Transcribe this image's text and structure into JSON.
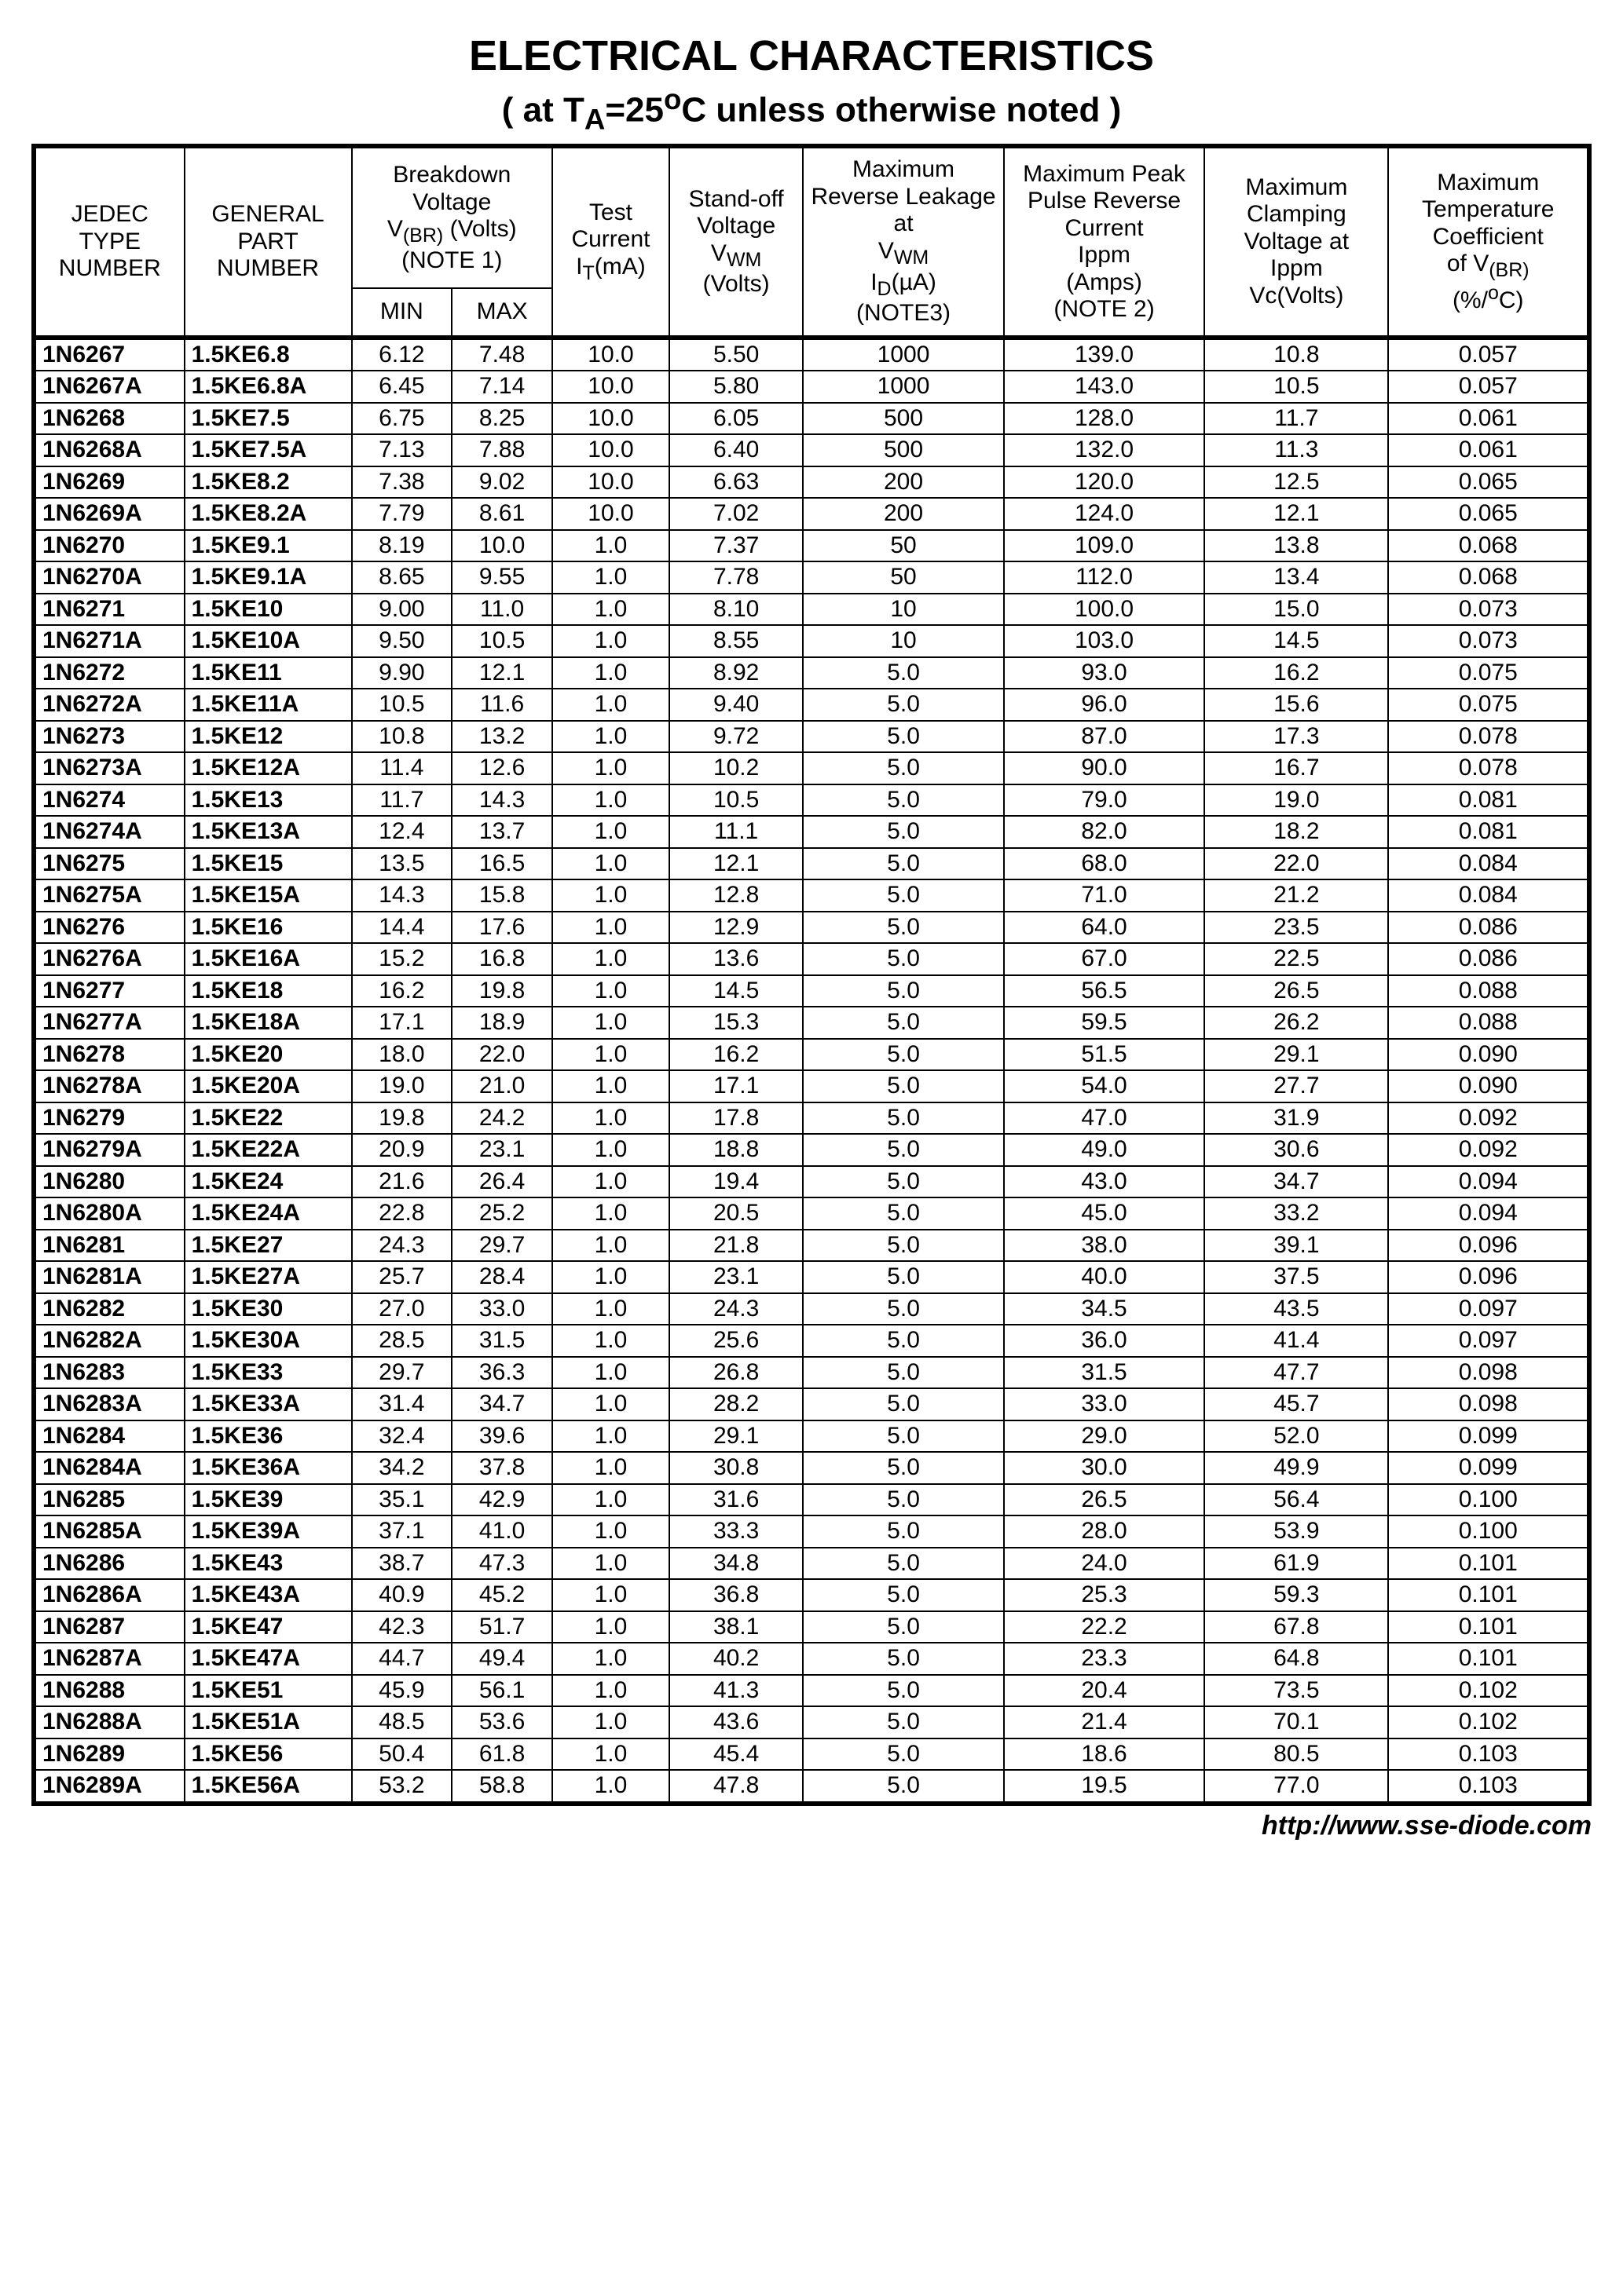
{
  "title": "ELECTRICAL CHARACTERISTICS",
  "subtitle_prefix": "( at T",
  "subtitle_sub": "A",
  "subtitle_mid": "=25",
  "subtitle_sup": "o",
  "subtitle_suffix": "C unless otherwise noted )",
  "footer_url": "http://www.sse-diode.com",
  "headers": {
    "jedec": "JEDEC TYPE NUMBER",
    "part": "GENERAL PART NUMBER",
    "breakdown_label": "Breakdown Voltage",
    "breakdown_v": "V",
    "breakdown_sub": "(BR)",
    "breakdown_units": " (Volts)",
    "breakdown_note": "(NOTE 1)",
    "min": "MIN",
    "max": "MAX",
    "test_label": "Test Current",
    "test_sym": "I",
    "test_sub": "T",
    "test_units": "(mA)",
    "standoff_label": "Stand-off Voltage",
    "standoff_sym": "V",
    "standoff_sub": "WM",
    "standoff_units": "(Volts)",
    "leakage_label": "Maximum Reverse Leakage at",
    "leakage_at_sym": "V",
    "leakage_at_sub": "WM",
    "leakage_sym": "I",
    "leakage_sub": "D",
    "leakage_units": "(µA)",
    "leakage_note": "(NOTE3)",
    "peak_label": "Maximum Peak Pulse Reverse Current",
    "peak_sym": "Ippm",
    "peak_units": "(Amps)",
    "peak_note": "(NOTE 2)",
    "clamp_label": "Maximum Clamping Voltage at",
    "clamp_at": "Ippm",
    "clamp_sym": "Vc(Volts)",
    "temp_label": "Maximum Temperature Coefficient",
    "temp_of": "of V",
    "temp_sub": "(BR)",
    "temp_units": "(%/",
    "temp_sup": "o",
    "temp_units2": "C)"
  },
  "rows": [
    [
      "1N6267",
      "1.5KE6.8",
      "6.12",
      "7.48",
      "10.0",
      "5.50",
      "1000",
      "139.0",
      "10.8",
      "0.057"
    ],
    [
      "1N6267A",
      "1.5KE6.8A",
      "6.45",
      "7.14",
      "10.0",
      "5.80",
      "1000",
      "143.0",
      "10.5",
      "0.057"
    ],
    [
      "1N6268",
      "1.5KE7.5",
      "6.75",
      "8.25",
      "10.0",
      "6.05",
      "500",
      "128.0",
      "11.7",
      "0.061"
    ],
    [
      "1N6268A",
      "1.5KE7.5A",
      "7.13",
      "7.88",
      "10.0",
      "6.40",
      "500",
      "132.0",
      "11.3",
      "0.061"
    ],
    [
      "1N6269",
      "1.5KE8.2",
      "7.38",
      "9.02",
      "10.0",
      "6.63",
      "200",
      "120.0",
      "12.5",
      "0.065"
    ],
    [
      "1N6269A",
      "1.5KE8.2A",
      "7.79",
      "8.61",
      "10.0",
      "7.02",
      "200",
      "124.0",
      "12.1",
      "0.065"
    ],
    [
      "1N6270",
      "1.5KE9.1",
      "8.19",
      "10.0",
      "1.0",
      "7.37",
      "50",
      "109.0",
      "13.8",
      "0.068"
    ],
    [
      "1N6270A",
      "1.5KE9.1A",
      "8.65",
      "9.55",
      "1.0",
      "7.78",
      "50",
      "112.0",
      "13.4",
      "0.068"
    ],
    [
      "1N6271",
      "1.5KE10",
      "9.00",
      "11.0",
      "1.0",
      "8.10",
      "10",
      "100.0",
      "15.0",
      "0.073"
    ],
    [
      "1N6271A",
      "1.5KE10A",
      "9.50",
      "10.5",
      "1.0",
      "8.55",
      "10",
      "103.0",
      "14.5",
      "0.073"
    ],
    [
      "1N6272",
      "1.5KE11",
      "9.90",
      "12.1",
      "1.0",
      "8.92",
      "5.0",
      "93.0",
      "16.2",
      "0.075"
    ],
    [
      "1N6272A",
      "1.5KE11A",
      "10.5",
      "11.6",
      "1.0",
      "9.40",
      "5.0",
      "96.0",
      "15.6",
      "0.075"
    ],
    [
      "1N6273",
      "1.5KE12",
      "10.8",
      "13.2",
      "1.0",
      "9.72",
      "5.0",
      "87.0",
      "17.3",
      "0.078"
    ],
    [
      "1N6273A",
      "1.5KE12A",
      "11.4",
      "12.6",
      "1.0",
      "10.2",
      "5.0",
      "90.0",
      "16.7",
      "0.078"
    ],
    [
      "1N6274",
      "1.5KE13",
      "11.7",
      "14.3",
      "1.0",
      "10.5",
      "5.0",
      "79.0",
      "19.0",
      "0.081"
    ],
    [
      "1N6274A",
      "1.5KE13A",
      "12.4",
      "13.7",
      "1.0",
      "11.1",
      "5.0",
      "82.0",
      "18.2",
      "0.081"
    ],
    [
      "1N6275",
      "1.5KE15",
      "13.5",
      "16.5",
      "1.0",
      "12.1",
      "5.0",
      "68.0",
      "22.0",
      "0.084"
    ],
    [
      "1N6275A",
      "1.5KE15A",
      "14.3",
      "15.8",
      "1.0",
      "12.8",
      "5.0",
      "71.0",
      "21.2",
      "0.084"
    ],
    [
      "1N6276",
      "1.5KE16",
      "14.4",
      "17.6",
      "1.0",
      "12.9",
      "5.0",
      "64.0",
      "23.5",
      "0.086"
    ],
    [
      "1N6276A",
      "1.5KE16A",
      "15.2",
      "16.8",
      "1.0",
      "13.6",
      "5.0",
      "67.0",
      "22.5",
      "0.086"
    ],
    [
      "1N6277",
      "1.5KE18",
      "16.2",
      "19.8",
      "1.0",
      "14.5",
      "5.0",
      "56.5",
      "26.5",
      "0.088"
    ],
    [
      "1N6277A",
      "1.5KE18A",
      "17.1",
      "18.9",
      "1.0",
      "15.3",
      "5.0",
      "59.5",
      "26.2",
      "0.088"
    ],
    [
      "1N6278",
      "1.5KE20",
      "18.0",
      "22.0",
      "1.0",
      "16.2",
      "5.0",
      "51.5",
      "29.1",
      "0.090"
    ],
    [
      "1N6278A",
      "1.5KE20A",
      "19.0",
      "21.0",
      "1.0",
      "17.1",
      "5.0",
      "54.0",
      "27.7",
      "0.090"
    ],
    [
      "1N6279",
      "1.5KE22",
      "19.8",
      "24.2",
      "1.0",
      "17.8",
      "5.0",
      "47.0",
      "31.9",
      "0.092"
    ],
    [
      "1N6279A",
      "1.5KE22A",
      "20.9",
      "23.1",
      "1.0",
      "18.8",
      "5.0",
      "49.0",
      "30.6",
      "0.092"
    ],
    [
      "1N6280",
      "1.5KE24",
      "21.6",
      "26.4",
      "1.0",
      "19.4",
      "5.0",
      "43.0",
      "34.7",
      "0.094"
    ],
    [
      "1N6280A",
      "1.5KE24A",
      "22.8",
      "25.2",
      "1.0",
      "20.5",
      "5.0",
      "45.0",
      "33.2",
      "0.094"
    ],
    [
      "1N6281",
      "1.5KE27",
      "24.3",
      "29.7",
      "1.0",
      "21.8",
      "5.0",
      "38.0",
      "39.1",
      "0.096"
    ],
    [
      "1N6281A",
      "1.5KE27A",
      "25.7",
      "28.4",
      "1.0",
      "23.1",
      "5.0",
      "40.0",
      "37.5",
      "0.096"
    ],
    [
      "1N6282",
      "1.5KE30",
      "27.0",
      "33.0",
      "1.0",
      "24.3",
      "5.0",
      "34.5",
      "43.5",
      "0.097"
    ],
    [
      "1N6282A",
      "1.5KE30A",
      "28.5",
      "31.5",
      "1.0",
      "25.6",
      "5.0",
      "36.0",
      "41.4",
      "0.097"
    ],
    [
      "1N6283",
      "1.5KE33",
      "29.7",
      "36.3",
      "1.0",
      "26.8",
      "5.0",
      "31.5",
      "47.7",
      "0.098"
    ],
    [
      "1N6283A",
      "1.5KE33A",
      "31.4",
      "34.7",
      "1.0",
      "28.2",
      "5.0",
      "33.0",
      "45.7",
      "0.098"
    ],
    [
      "1N6284",
      "1.5KE36",
      "32.4",
      "39.6",
      "1.0",
      "29.1",
      "5.0",
      "29.0",
      "52.0",
      "0.099"
    ],
    [
      "1N6284A",
      "1.5KE36A",
      "34.2",
      "37.8",
      "1.0",
      "30.8",
      "5.0",
      "30.0",
      "49.9",
      "0.099"
    ],
    [
      "1N6285",
      "1.5KE39",
      "35.1",
      "42.9",
      "1.0",
      "31.6",
      "5.0",
      "26.5",
      "56.4",
      "0.100"
    ],
    [
      "1N6285A",
      "1.5KE39A",
      "37.1",
      "41.0",
      "1.0",
      "33.3",
      "5.0",
      "28.0",
      "53.9",
      "0.100"
    ],
    [
      "1N6286",
      "1.5KE43",
      "38.7",
      "47.3",
      "1.0",
      "34.8",
      "5.0",
      "24.0",
      "61.9",
      "0.101"
    ],
    [
      "1N6286A",
      "1.5KE43A",
      "40.9",
      "45.2",
      "1.0",
      "36.8",
      "5.0",
      "25.3",
      "59.3",
      "0.101"
    ],
    [
      "1N6287",
      "1.5KE47",
      "42.3",
      "51.7",
      "1.0",
      "38.1",
      "5.0",
      "22.2",
      "67.8",
      "0.101"
    ],
    [
      "1N6287A",
      "1.5KE47A",
      "44.7",
      "49.4",
      "1.0",
      "40.2",
      "5.0",
      "23.3",
      "64.8",
      "0.101"
    ],
    [
      "1N6288",
      "1.5KE51",
      "45.9",
      "56.1",
      "1.0",
      "41.3",
      "5.0",
      "20.4",
      "73.5",
      "0.102"
    ],
    [
      "1N6288A",
      "1.5KE51A",
      "48.5",
      "53.6",
      "1.0",
      "43.6",
      "5.0",
      "21.4",
      "70.1",
      "0.102"
    ],
    [
      "1N6289",
      "1.5KE56",
      "50.4",
      "61.8",
      "1.0",
      "45.4",
      "5.0",
      "18.6",
      "80.5",
      "0.103"
    ],
    [
      "1N6289A",
      "1.5KE56A",
      "53.2",
      "58.8",
      "1.0",
      "47.8",
      "5.0",
      "19.5",
      "77.0",
      "0.103"
    ]
  ]
}
